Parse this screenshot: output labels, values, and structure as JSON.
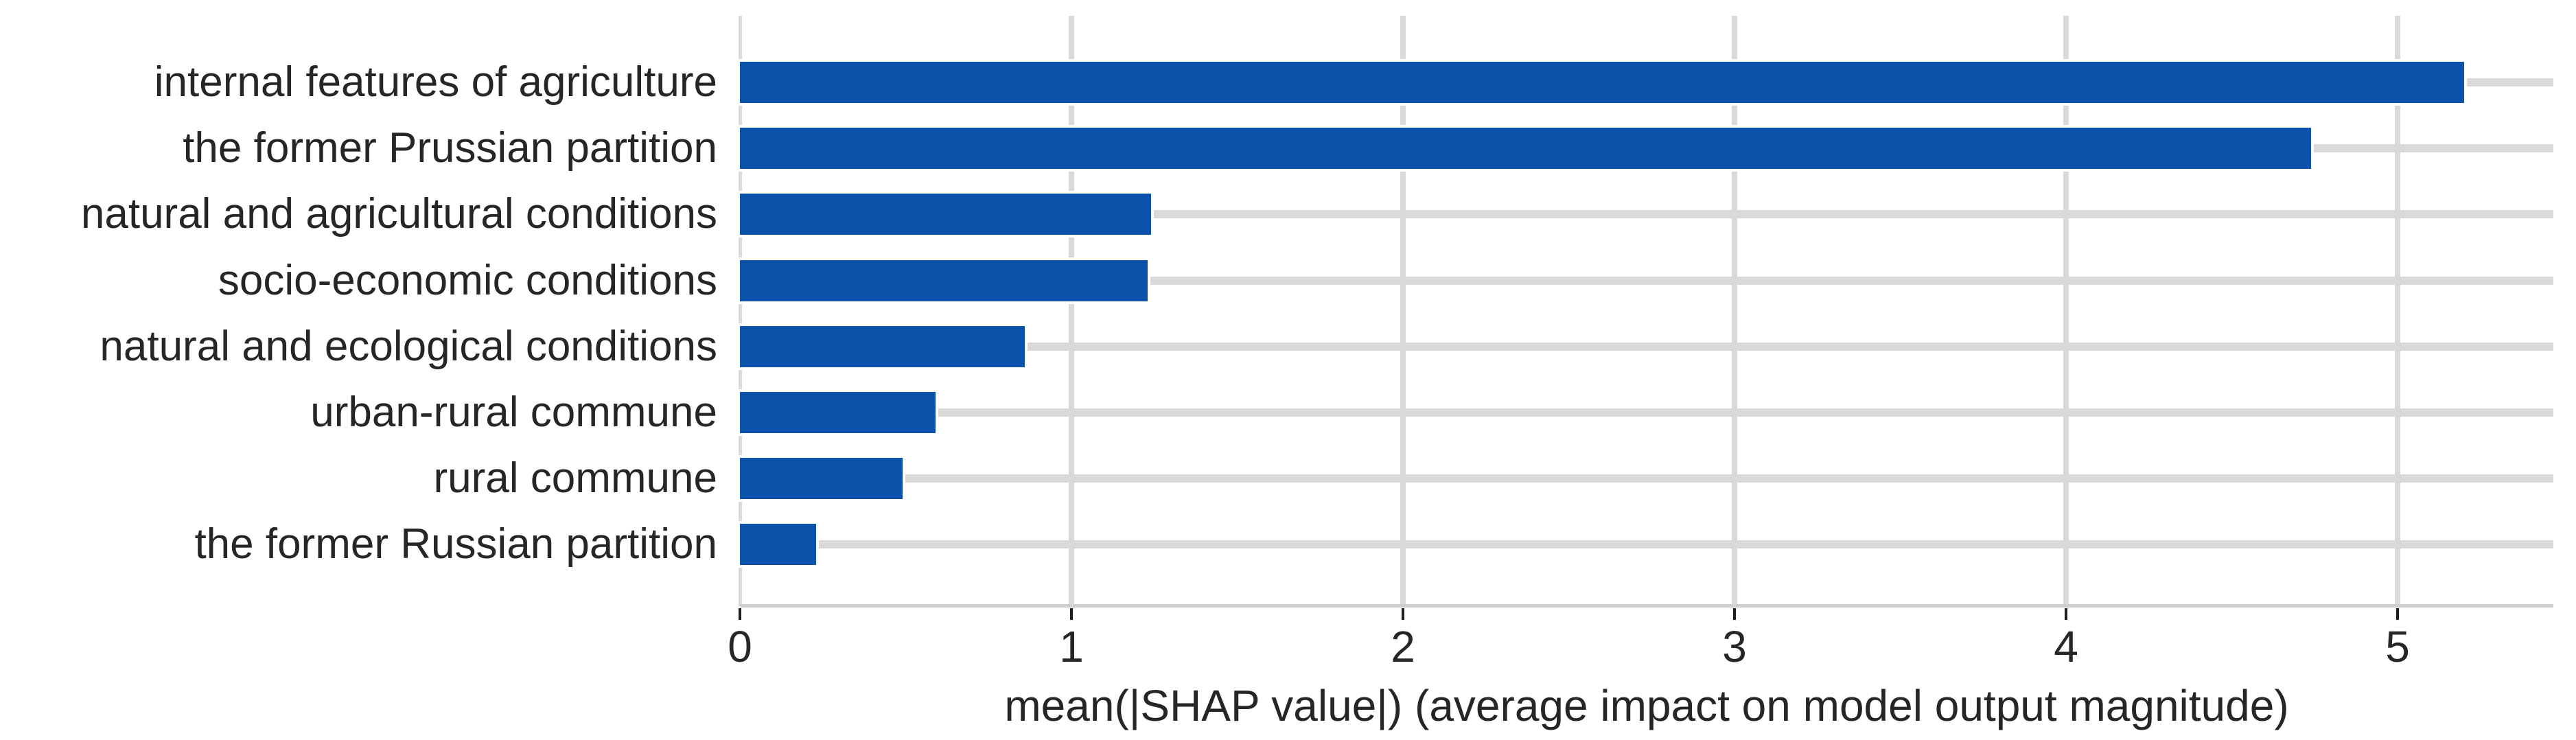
{
  "chart_data": {
    "type": "bar",
    "orientation": "horizontal",
    "title": "",
    "categories": [
      "internal features of agriculture",
      "the former Prussian partition",
      "natural and agricultural conditions",
      "socio-economic conditions",
      "natural and ecological conditions",
      "urban-rural commune",
      "rural commune",
      "the former Russian partition"
    ],
    "values": [
      5.2,
      4.74,
      1.24,
      1.23,
      0.86,
      0.59,
      0.49,
      0.23
    ],
    "xlabel": "mean(|SHAP value|) (average impact on model output magnitude)",
    "ylabel": "",
    "xticks": [
      0,
      1,
      2,
      3,
      4,
      5
    ],
    "xlim": [
      0,
      5.47
    ],
    "grid": true,
    "legend_position": "none",
    "bar_color": "#0a52aa",
    "grid_color": "#d9d9d9",
    "axis_spine_color": "#cfcfcf",
    "tick_color": "#1f1f1f",
    "text_color": "#262626",
    "background_color": "#ffffff"
  }
}
